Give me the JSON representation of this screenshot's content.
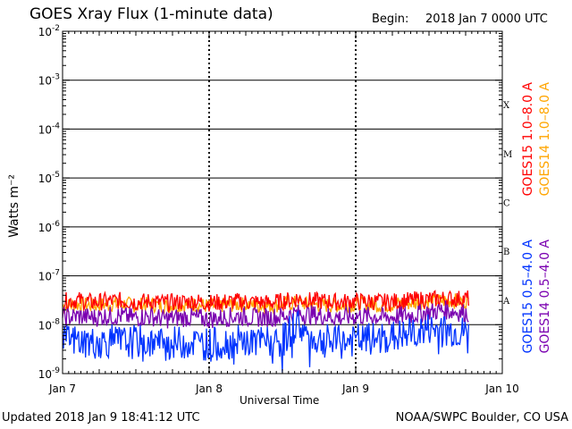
{
  "title": "GOES Xray Flux (1-minute data)",
  "begin_label": "Begin:",
  "begin_value": "2018 Jan 7 0000 UTC",
  "updated": "Updated 2018 Jan  9 18:41:12 UTC",
  "credit": "NOAA/SWPC Boulder, CO USA",
  "colors": {
    "goes15_long": "#ff0000",
    "goes14_long": "#ffa500",
    "goes15_short": "#0033ff",
    "goes14_short": "#7a00b0"
  },
  "chart_data": {
    "type": "line",
    "title": "GOES Xray Flux (1-minute data)",
    "xlabel": "Universal Time",
    "ylabel": "Watts m⁻²",
    "yscale": "log",
    "ylim": [
      1e-09,
      0.01
    ],
    "xlim_days": [
      0,
      3
    ],
    "x_ticks": [
      "Jan 7",
      "Jan 8",
      "Jan 9",
      "Jan 10"
    ],
    "y_ticks": [
      {
        "base": "10",
        "exp": "-9"
      },
      {
        "base": "10",
        "exp": "-8"
      },
      {
        "base": "10",
        "exp": "-7"
      },
      {
        "base": "10",
        "exp": "-6"
      },
      {
        "base": "10",
        "exp": "-5"
      },
      {
        "base": "10",
        "exp": "-4"
      },
      {
        "base": "10",
        "exp": "-3"
      },
      {
        "base": "10",
        "exp": "-2"
      }
    ],
    "flare_classes": [
      "A",
      "B",
      "C",
      "M",
      "X"
    ],
    "grid": true,
    "legend": "right",
    "series": [
      {
        "name": "GOES15 1.0–8.0 A",
        "color": "#ff0000",
        "x": [
          0,
          0.1,
          0.2,
          0.3,
          0.4,
          0.5,
          0.6,
          0.7,
          0.8,
          0.9,
          1.0,
          1.1,
          1.2,
          1.3,
          1.4,
          1.5,
          1.6,
          1.7,
          1.8,
          1.9,
          2.0,
          2.1,
          2.2,
          2.3,
          2.4,
          2.5,
          2.6,
          2.77
        ],
        "y": [
          3e-08,
          3.2e-08,
          2.9e-08,
          3e-08,
          3.1e-08,
          2.9e-08,
          3e-08,
          2.8e-08,
          2.9e-08,
          3e-08,
          2.8e-08,
          2.9e-08,
          3e-08,
          2.9e-08,
          2.8e-08,
          3e-08,
          3.4e-08,
          3.1e-08,
          3e-08,
          2.9e-08,
          3e-08,
          3e-08,
          2.9e-08,
          3e-08,
          3.2e-08,
          3.3e-08,
          3.4e-08,
          3.4e-08
        ]
      },
      {
        "name": "GOES14 1.0–8.0 A",
        "color": "#ffa500",
        "x": [
          0,
          0.1,
          0.2,
          0.3,
          0.4,
          0.5,
          0.6,
          0.7,
          0.8,
          0.9,
          1.0,
          1.1,
          1.2,
          1.3,
          1.4,
          1.5,
          1.6,
          1.7,
          1.8,
          1.9,
          2.0,
          2.1,
          2.2,
          2.3,
          2.4,
          2.5,
          2.6,
          2.77
        ],
        "y": [
          2.4e-08,
          2.6e-08,
          2.5e-08,
          2.6e-08,
          2.7e-08,
          2.5e-08,
          2.6e-08,
          2.4e-08,
          2.5e-08,
          2.6e-08,
          2.4e-08,
          2.5e-08,
          2.6e-08,
          2.5e-08,
          2.4e-08,
          2.6e-08,
          2.8e-08,
          2.6e-08,
          2.5e-08,
          2.5e-08,
          2.6e-08,
          2.6e-08,
          2.5e-08,
          2.7e-08,
          2.8e-08,
          3e-08,
          3.1e-08,
          3e-08
        ]
      },
      {
        "name": "GOES15 0.5–4.0 A",
        "color": "#0033ff",
        "x": [
          0,
          0.1,
          0.2,
          0.3,
          0.4,
          0.5,
          0.6,
          0.7,
          0.8,
          0.9,
          1.0,
          1.1,
          1.2,
          1.3,
          1.4,
          1.5,
          1.6,
          1.65,
          1.7,
          1.8,
          1.9,
          2.0,
          2.1,
          2.2,
          2.3,
          2.4,
          2.5,
          2.6,
          2.77
        ],
        "y": [
          4.5e-09,
          4.8e-09,
          4.2e-09,
          4.6e-09,
          4.3e-09,
          4.5e-09,
          4.4e-09,
          4e-09,
          4.3e-09,
          4.4e-09,
          4e-09,
          4.2e-09,
          4.5e-09,
          4.3e-09,
          4.4e-09,
          4.6e-09,
          1.1e-08,
          7e-09,
          5e-09,
          4.6e-09,
          4.3e-09,
          4.8e-09,
          5e-09,
          5.2e-09,
          5.8e-09,
          6.5e-09,
          8e-09,
          7.5e-09,
          6.5e-09
        ]
      },
      {
        "name": "GOES14 0.5–4.0 A",
        "color": "#7a00b0",
        "x": [
          0,
          0.1,
          0.2,
          0.3,
          0.4,
          0.5,
          0.6,
          0.7,
          0.8,
          0.9,
          1.0,
          1.1,
          1.2,
          1.3,
          1.4,
          1.5,
          1.6,
          1.7,
          1.8,
          1.9,
          2.0,
          2.1,
          2.2,
          2.3,
          2.4,
          2.5,
          2.6,
          2.77
        ],
        "y": [
          1.4e-08,
          1.5e-08,
          1.4e-08,
          1.5e-08,
          1.5e-08,
          1.4e-08,
          1.5e-08,
          1.3e-08,
          1.4e-08,
          1.4e-08,
          1.3e-08,
          1.4e-08,
          1.5e-08,
          1.4e-08,
          1.4e-08,
          1.5e-08,
          1.7e-08,
          1.6e-08,
          1.5e-08,
          1.4e-08,
          1.5e-08,
          1.5e-08,
          1.4e-08,
          1.5e-08,
          1.6e-08,
          1.8e-08,
          2e-08,
          1.7e-08
        ]
      }
    ]
  }
}
